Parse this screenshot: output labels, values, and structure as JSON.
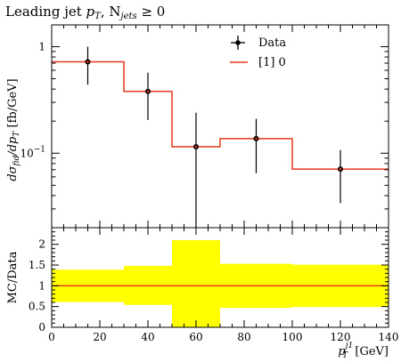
{
  "chart_data": [
    {
      "type": "line",
      "title": "Leading jet p_T, N_jets ≥ 0",
      "title_parts": {
        "main": "Leading jet ",
        "sym": "p",
        "sub": "T",
        "rest": ", N",
        "sub2": "jets",
        "cond": " ≥ 0"
      },
      "ylabel": "dσ_fid/dp_T [fb/GeV]",
      "ylabel_parts": {
        "a": "dσ",
        "a_sub": "fid",
        "b": "/dp",
        "b_sub": "T",
        "unit": " [fb/GeV]"
      },
      "yscale": "log",
      "xlim": [
        0,
        140
      ],
      "ylim": [
        0.02,
        1.6
      ],
      "y_ticks": [
        {
          "value": 1,
          "label": "1"
        },
        {
          "value": 0.1,
          "label": "10",
          "exp": "−1"
        }
      ],
      "grid": false,
      "legend_position": "top-right",
      "series": [
        {
          "name": "Data",
          "style": "points-with-errorbars",
          "color": "#000000",
          "points": [
            {
              "x": 15,
              "y": 0.72,
              "yerr_low": 0.44,
              "yerr_high": 1.0
            },
            {
              "x": 40,
              "y": 0.38,
              "yerr_low": 0.205,
              "yerr_high": 0.57
            },
            {
              "x": 60,
              "y": 0.115,
              "yerr_low": 0.02,
              "yerr_high": 0.24
            },
            {
              "x": 85,
              "y": 0.137,
              "yerr_low": 0.065,
              "yerr_high": 0.21
            },
            {
              "x": 120,
              "y": 0.071,
              "yerr_low": 0.034,
              "yerr_high": 0.107
            }
          ]
        },
        {
          "name": "[1] 0",
          "style": "step",
          "color": "#e8381f",
          "bins": [
            {
              "x_low": 0,
              "x_high": 30,
              "y": 0.72
            },
            {
              "x_low": 30,
              "x_high": 50,
              "y": 0.38
            },
            {
              "x_low": 50,
              "x_high": 70,
              "y": 0.115
            },
            {
              "x_low": 70,
              "x_high": 100,
              "y": 0.137
            },
            {
              "x_low": 100,
              "x_high": 140,
              "y": 0.071
            }
          ]
        }
      ]
    },
    {
      "type": "area",
      "ylabel": "MC/Data",
      "xlabel": "p_T^{j1} [GeV]",
      "xlabel_parts": {
        "sym": "p",
        "sub": "T",
        "sup": "j1",
        "unit": " [GeV]"
      },
      "xlim": [
        0,
        140
      ],
      "ylim": [
        0,
        2.4
      ],
      "x_ticks": [
        0,
        20,
        40,
        60,
        80,
        100,
        120,
        140
      ],
      "y_ticks": [
        {
          "value": 0,
          "label": "0"
        },
        {
          "value": 0.5,
          "label": "0.5"
        },
        {
          "value": 1,
          "label": "1"
        },
        {
          "value": 1.5,
          "label": "1.5"
        },
        {
          "value": 2,
          "label": "2"
        }
      ],
      "reference_line": 1,
      "band_color": "#ffff00",
      "line_color": "#e8381f",
      "bands": [
        {
          "x_low": 0,
          "x_high": 30,
          "low": 0.61,
          "high": 1.39
        },
        {
          "x_low": 30,
          "x_high": 50,
          "low": 0.54,
          "high": 1.48
        },
        {
          "x_low": 50,
          "x_high": 70,
          "low": 0.0,
          "high": 2.1
        },
        {
          "x_low": 70,
          "x_high": 100,
          "low": 0.47,
          "high": 1.53
        },
        {
          "x_low": 100,
          "x_high": 140,
          "low": 0.49,
          "high": 1.51
        }
      ]
    }
  ]
}
